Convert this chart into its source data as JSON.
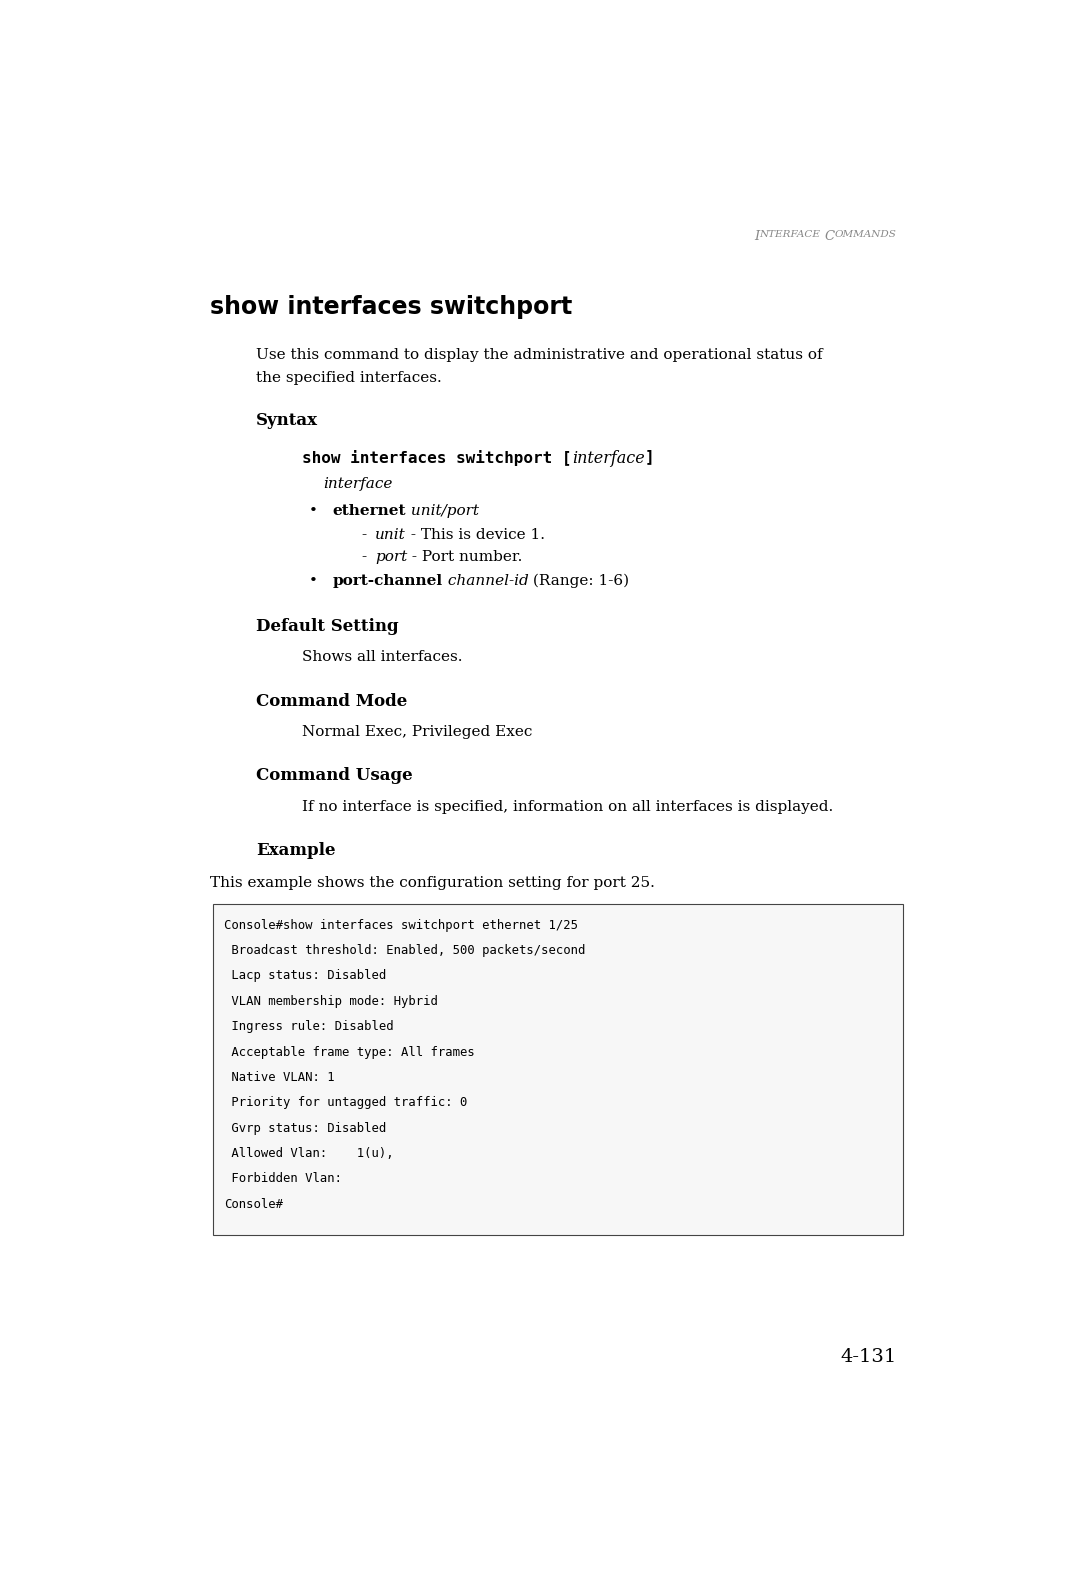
{
  "bg_color": "#ffffff",
  "page_width": 10.8,
  "page_height": 15.7,
  "header": "Interface Commands",
  "title": "show interfaces switchport",
  "desc_line1": "Use this command to display the administrative and operational status of",
  "desc_line2": "the specified interfaces.",
  "syntax_label": "Syntax",
  "syntax_cmd_bold": "show interfaces switchport [",
  "syntax_cmd_italic": "interface",
  "syntax_cmd_close": "]",
  "syntax_indent_italic": "interface",
  "bullet1_bold": "ethernet",
  "bullet1_italic": " unit/port",
  "dash1_italic": "unit",
  "dash1_text": " - This is device 1.",
  "dash2_italic": "port",
  "dash2_text": " - Port number.",
  "bullet2_bold": "port-channel",
  "bullet2_italic": " channel-id",
  "bullet2_text": " (Range: 1-6)",
  "default_setting_label": "Default Setting",
  "default_setting_text": "Shows all interfaces.",
  "command_mode_label": "Command Mode",
  "command_mode_text": "Normal Exec, Privileged Exec",
  "command_usage_label": "Command Usage",
  "command_usage_text": "If no interface is specified, information on all interfaces is displayed.",
  "example_label": "Example",
  "example_text": "This example shows the configuration setting for port 25.",
  "code_lines": [
    "Console#show interfaces switchport ethernet 1/25",
    " Broadcast threshold: Enabled, 500 packets/second",
    " Lacp status: Disabled",
    " VLAN membership mode: Hybrid",
    " Ingress rule: Disabled",
    " Acceptable frame type: All frames",
    " Native VLAN: 1",
    " Priority for untagged traffic: 0",
    " Gvrp status: Disabled",
    " Allowed Vlan:    1(u),",
    " Forbidden Vlan:",
    "Console#"
  ],
  "page_number": "4-131"
}
